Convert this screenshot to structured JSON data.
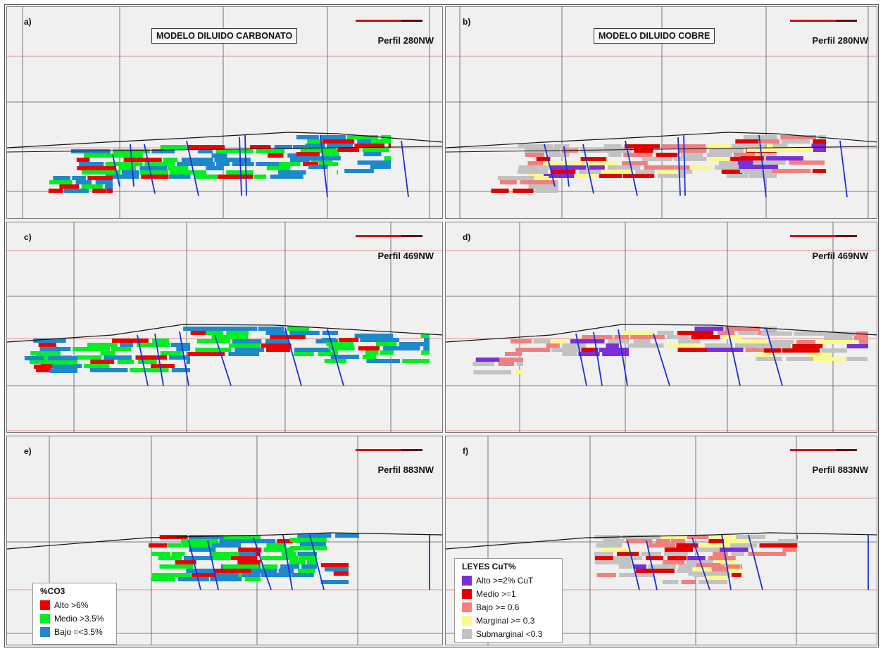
{
  "panels": [
    {
      "label": "a)",
      "perfil": "Perfil 280NW",
      "title": "MODELO DILUIDO CARBONATO"
    },
    {
      "label": "b)",
      "perfil": "Perfil 280NW",
      "title": "MODELO DILUIDO COBRE"
    },
    {
      "label": "c)",
      "perfil": "Perfil 469NW",
      "title": ""
    },
    {
      "label": "d)",
      "perfil": "Perfil 469NW",
      "title": ""
    },
    {
      "label": "e)",
      "perfil": "Perfil 883NW",
      "title": ""
    },
    {
      "label": "f)",
      "perfil": "Perfil 883NW",
      "title": ""
    }
  ],
  "legend_co3": {
    "title": "%CO3",
    "items": [
      {
        "label": "Alto >6%",
        "color": "#ee0000"
      },
      {
        "label": "Medio >3.5%",
        "color": "#00ee22"
      },
      {
        "label": "Bajo =<3.5%",
        "color": "#1e88cc"
      }
    ]
  },
  "legend_cut": {
    "title": "LEYES CuT%",
    "items": [
      {
        "label": "Alto >=2% CuT",
        "color": "#7a2fd8"
      },
      {
        "label": "Medio >=1",
        "color": "#e00000"
      },
      {
        "label": "Bajo >= 0.6",
        "color": "#f08080"
      },
      {
        "label": "Marginal >= 0.3",
        "color": "#fafa8a"
      },
      {
        "label": "Submarginal <0.3",
        "color": "#c2c2c2"
      }
    ]
  },
  "colors": {
    "alto_co3": "#ee0000",
    "medio_co3": "#00ee22",
    "bajo_co3": "#1e88cc",
    "alto_cu": "#7a2fd8",
    "medio_cu": "#e00000",
    "bajo_cu": "#f08080",
    "marginal_cu": "#fafa8a",
    "submarginal_cu": "#c2c2c2",
    "fault": "#1a2fd6",
    "gridline": "#555555",
    "elevation_line": "#e07070",
    "topography": "#111111"
  }
}
